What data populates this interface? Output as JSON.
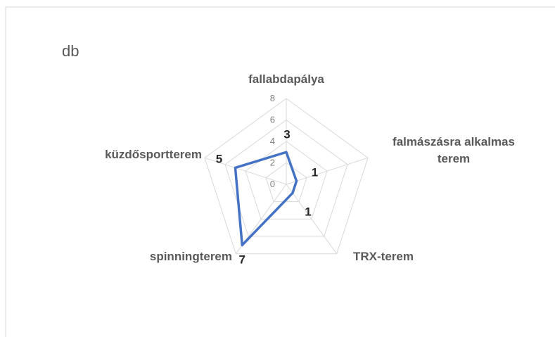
{
  "chart_data": {
    "type": "radar",
    "title": "db",
    "categories": [
      "fallabdapálya",
      "falmászásra alkalmas terem",
      "TRX-terem",
      "spinningterem",
      "küzdősportterem"
    ],
    "values": [
      3,
      1,
      1,
      7,
      5
    ],
    "color": "#4472c4",
    "ylim": [
      0,
      8
    ],
    "yticks": [
      0,
      2,
      4,
      6,
      8
    ],
    "grid": true
  }
}
